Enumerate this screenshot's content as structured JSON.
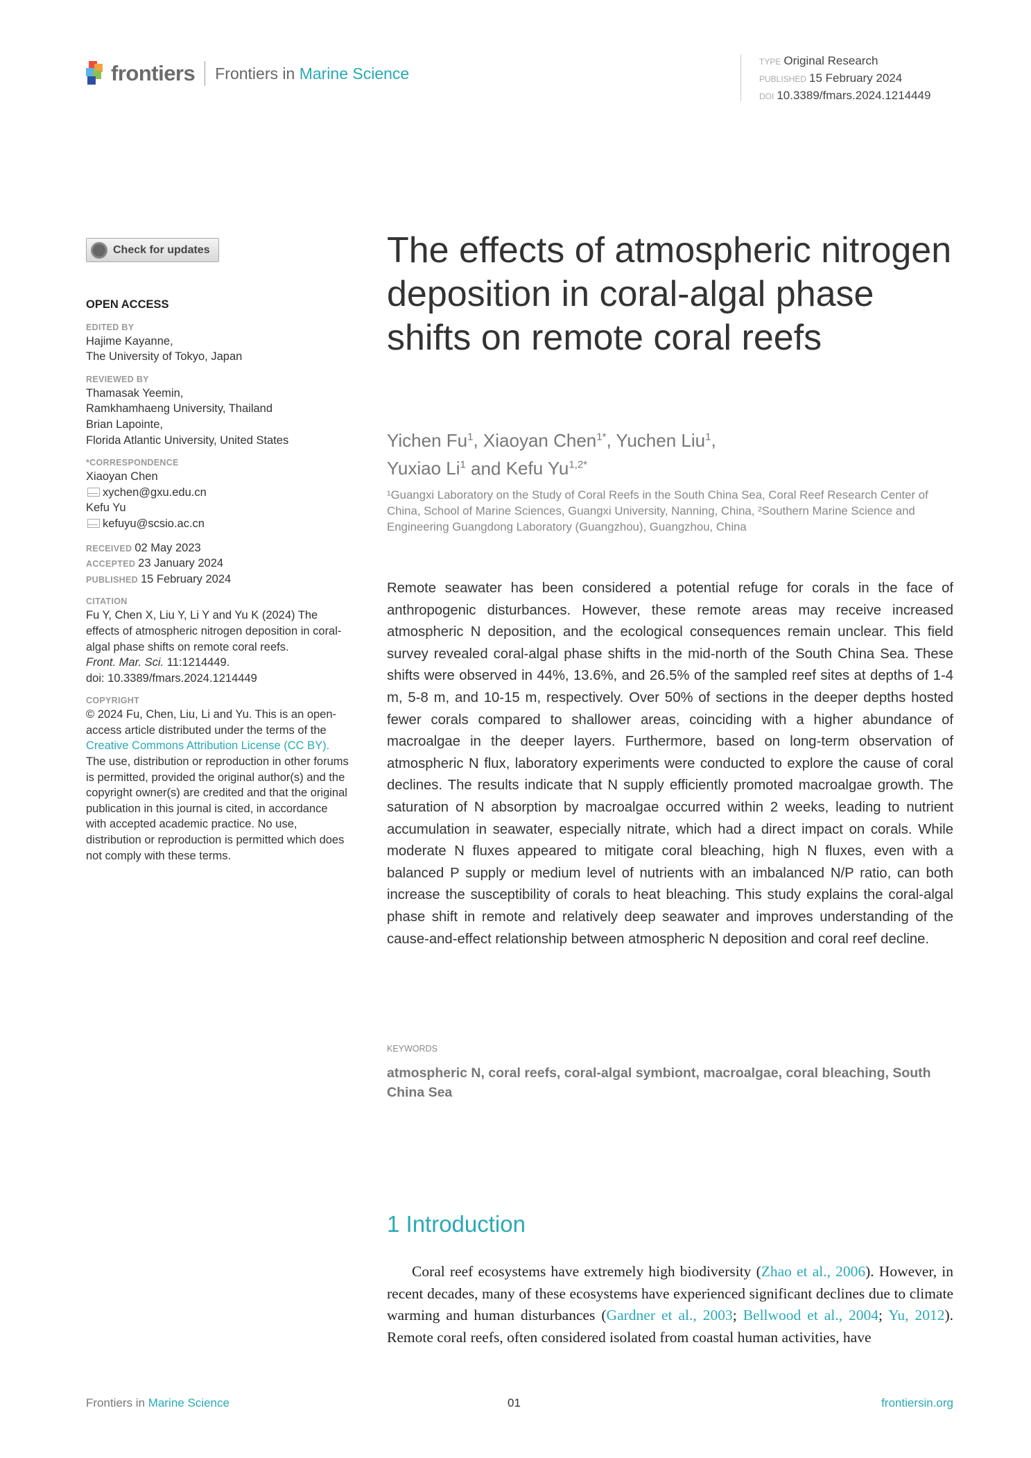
{
  "header": {
    "brand": "frontiers",
    "journal_prefix": "Frontiers in",
    "journal_name": "Marine Science",
    "type_label": "TYPE",
    "type_value": "Original Research",
    "published_label": "PUBLISHED",
    "published_value": "15 February 2024",
    "doi_label": "DOI",
    "doi_value": "10.3389/fmars.2024.1214449"
  },
  "sidebar": {
    "check_updates": "Check for updates",
    "open_access": "OPEN ACCESS",
    "edited_by_label": "EDITED BY",
    "edited_by": [
      "Hajime Kayanne,",
      "The University of Tokyo, Japan"
    ],
    "reviewed_by_label": "REVIEWED BY",
    "reviewed_by": [
      "Thamasak Yeemin,",
      "Ramkhamhaeng University, Thailand",
      "Brian Lapointe,",
      "Florida Atlantic University, United States"
    ],
    "correspondence_label": "*CORRESPONDENCE",
    "correspondents": [
      {
        "name": "Xiaoyan Chen",
        "email": "xychen@gxu.edu.cn"
      },
      {
        "name": "Kefu Yu",
        "email": "kefuyu@scsio.ac.cn"
      }
    ],
    "received_label": "RECEIVED",
    "received": "02 May 2023",
    "accepted_label": "ACCEPTED",
    "accepted": "23 January 2024",
    "published_label": "PUBLISHED",
    "published": "15 February 2024",
    "citation_label": "CITATION",
    "citation_text": "Fu Y, Chen X, Liu Y, Li Y and Yu K (2024) The effects of atmospheric nitrogen deposition in coral-algal phase shifts on remote coral reefs.",
    "citation_journal": "Front. Mar. Sci.",
    "citation_volume": "11:1214449.",
    "citation_doi": "doi: 10.3389/fmars.2024.1214449",
    "copyright_label": "COPYRIGHT",
    "copyright_pre": "© 2024 Fu, Chen, Liu, Li and Yu. This is an open-access article distributed under the terms of the",
    "copyright_link": "Creative Commons Attribution License (CC BY).",
    "copyright_post": "The use, distribution or reproduction in other forums is permitted, provided the original author(s) and the copyright owner(s) are credited and that the original publication in this journal is cited, in accordance with accepted academic practice. No use, distribution or reproduction is permitted which does not comply with these terms."
  },
  "article": {
    "title": "The effects of atmospheric nitrogen deposition in coral-algal phase shifts on remote coral reefs",
    "authors": [
      {
        "name": "Yichen Fu",
        "sup": "1",
        "sep": ", "
      },
      {
        "name": "Xiaoyan Chen",
        "sup": "1*",
        "sep": ", "
      },
      {
        "name": "Yuchen Liu",
        "sup": "1",
        "sep": ","
      },
      {
        "name": "Yuxiao Li",
        "sup": "1",
        "sep": " and "
      },
      {
        "name": "Kefu Yu",
        "sup": "1,2*",
        "sep": ""
      }
    ],
    "affiliations": "¹Guangxi Laboratory on the Study of Coral Reefs in the South China Sea, Coral Reef Research Center of China, School of Marine Sciences, Guangxi University, Nanning, China, ²Southern Marine Science and Engineering Guangdong Laboratory (Guangzhou), Guangzhou, China",
    "abstract": "Remote seawater has been considered a potential refuge for corals in the face of anthropogenic disturbances. However, these remote areas may receive increased atmospheric N deposition, and the ecological consequences remain unclear. This field survey revealed coral-algal phase shifts in the mid-north of the South China Sea. These shifts were observed in 44%, 13.6%, and 26.5% of the sampled reef sites at depths of 1-4 m, 5-8 m, and 10-15 m, respectively. Over 50% of sections in the deeper depths hosted fewer corals compared to shallower areas, coinciding with a higher abundance of macroalgae in the deeper layers. Furthermore, based on long-term observation of atmospheric N flux, laboratory experiments were conducted to explore the cause of coral declines. The results indicate that N supply efficiently promoted macroalgae growth. The saturation of N absorption by macroalgae occurred within 2 weeks, leading to nutrient accumulation in seawater, especially nitrate, which had a direct impact on corals. While moderate N fluxes appeared to mitigate coral bleaching, high N fluxes, even with a balanced P supply or medium level of nutrients with an imbalanced N/P ratio, can both increase the susceptibility of corals to heat bleaching. This study explains the coral-algal phase shift in remote and relatively deep seawater and improves understanding of the cause-and-effect relationship between atmospheric N deposition and coral reef decline.",
    "keywords_label": "KEYWORDS",
    "keywords": "atmospheric N, coral reefs, coral-algal symbiont, macroalgae, coral bleaching, South China Sea",
    "intro_heading": "1 Introduction",
    "intro_parts": [
      {
        "t": "Coral reef ecosystems have extremely high biodiversity (",
        "link": false
      },
      {
        "t": "Zhao et al., 2006",
        "link": true
      },
      {
        "t": "). However, in recent decades, many of these ecosystems have experienced significant declines due to climate warming and human disturbances (",
        "link": false
      },
      {
        "t": "Gardner et al., 2003",
        "link": true
      },
      {
        "t": "; ",
        "link": false
      },
      {
        "t": "Bellwood et al., 2004",
        "link": true
      },
      {
        "t": "; ",
        "link": false
      },
      {
        "t": "Yu, 2012",
        "link": true
      },
      {
        "t": "). Remote coral reefs, often considered isolated from coastal human activities, have",
        "link": false
      }
    ]
  },
  "footer": {
    "journal_prefix": "Frontiers in",
    "journal_name": "Marine Science",
    "page": "01",
    "site": "frontiersin.org"
  },
  "colors": {
    "accent": "#29a9b5",
    "text": "#333333",
    "muted": "#8a8a8a"
  }
}
